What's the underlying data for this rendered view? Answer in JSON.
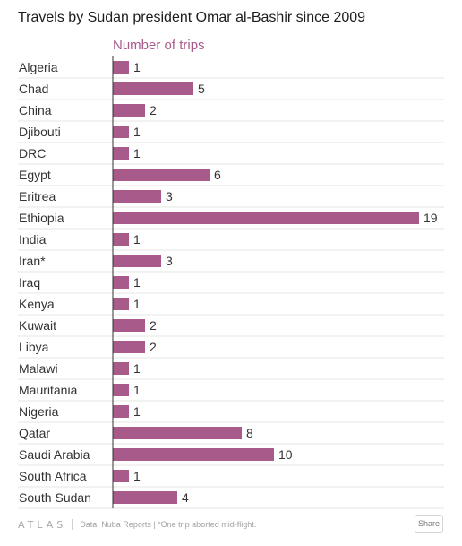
{
  "title": "Travels by Sudan president Omar al-Bashir since 2009",
  "chart_data": {
    "type": "bar",
    "orientation": "horizontal",
    "title": "Travels by Sudan president Omar al-Bashir since 2009",
    "series": [
      {
        "name": "Number of trips",
        "values": [
          1,
          5,
          2,
          1,
          1,
          6,
          3,
          19,
          1,
          3,
          1,
          1,
          2,
          2,
          1,
          1,
          1,
          8,
          10,
          1,
          4
        ]
      }
    ],
    "categories": [
      "Algeria",
      "Chad",
      "China",
      "Djibouti",
      "DRC",
      "Egypt",
      "Eritrea",
      "Ethiopia",
      "India",
      "Iran*",
      "Iraq",
      "Kenya",
      "Kuwait",
      "Libya",
      "Malawi",
      "Mauritania",
      "Nigeria",
      "Qatar",
      "Saudi Arabia",
      "South Africa",
      "South Sudan"
    ],
    "xlim": [
      0,
      19
    ],
    "grid": false,
    "bar_color": "#a85a8a",
    "series_label_color": "#a85a8a",
    "data_labels": true
  },
  "footer": {
    "logo": "ATLAS",
    "source": "Data: Nuba Reports | *One trip aborted mid-flight.",
    "share_label": "Share"
  }
}
